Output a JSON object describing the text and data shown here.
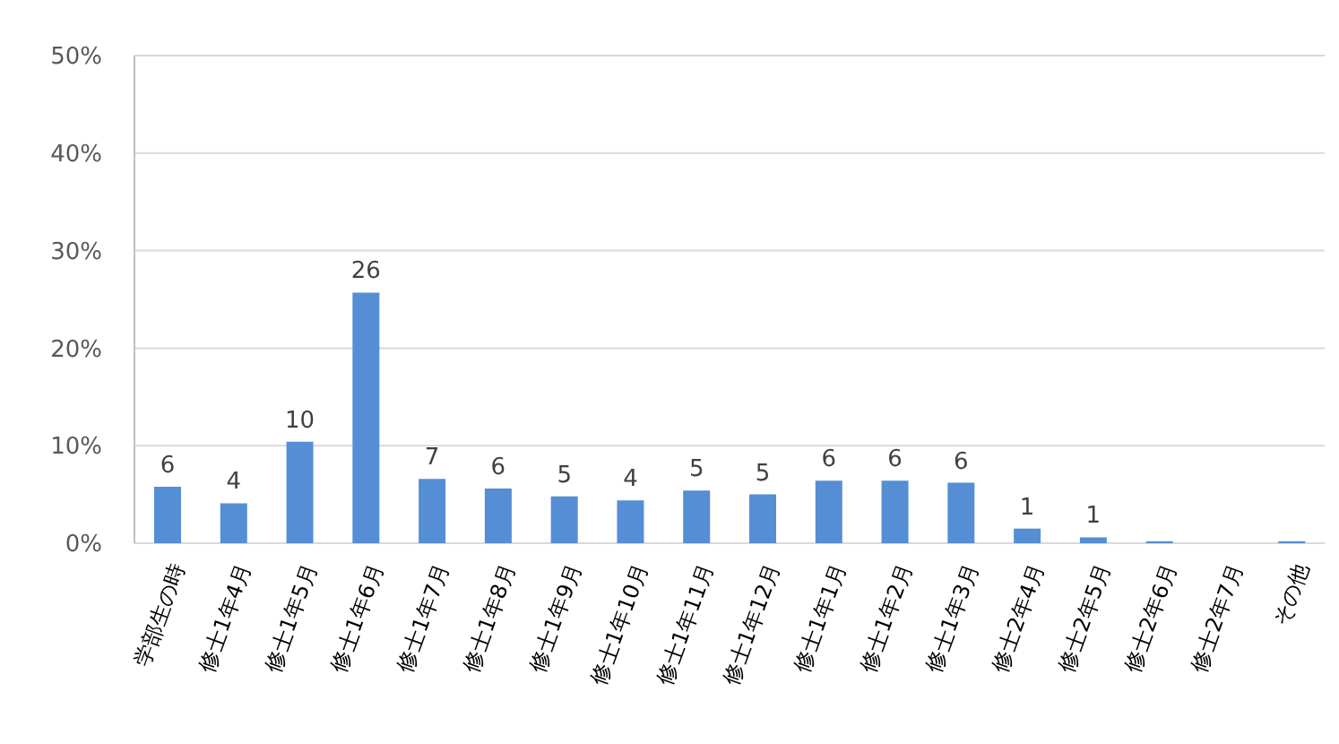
{
  "chart_data": {
    "type": "bar",
    "categories": [
      "学部生の時",
      "修士1年4月",
      "修士1年5月",
      "修士1年6月",
      "修士1年7月",
      "修士1年8月",
      "修士1年9月",
      "修士1年10月",
      "修士1年11月",
      "修士1年12月",
      "修士1年1月",
      "修士1年2月",
      "修士1年3月",
      "修士2年4月",
      "修士2年5月",
      "修士2年6月",
      "修士2年7月",
      "その他"
    ],
    "values": [
      5.8,
      4.1,
      10.4,
      25.7,
      6.6,
      5.6,
      4.8,
      4.4,
      5.4,
      5.0,
      6.4,
      6.4,
      6.2,
      1.5,
      0.6,
      0.2,
      0,
      0.2
    ],
    "value_labels": [
      "6",
      "4",
      "10",
      "26",
      "7",
      "6",
      "5",
      "4",
      "5",
      "5",
      "6",
      "6",
      "6",
      "1",
      "1",
      null,
      null,
      null
    ],
    "color": "#558ed5",
    "ylim": [
      0,
      50
    ],
    "yticks": [
      {
        "value": 0,
        "label": "0%"
      },
      {
        "value": 10,
        "label": "10%"
      },
      {
        "value": 20,
        "label": "20%"
      },
      {
        "value": 30,
        "label": "30%"
      },
      {
        "value": 40,
        "label": "40%"
      },
      {
        "value": 50,
        "label": "50%"
      }
    ],
    "grid": "y"
  }
}
